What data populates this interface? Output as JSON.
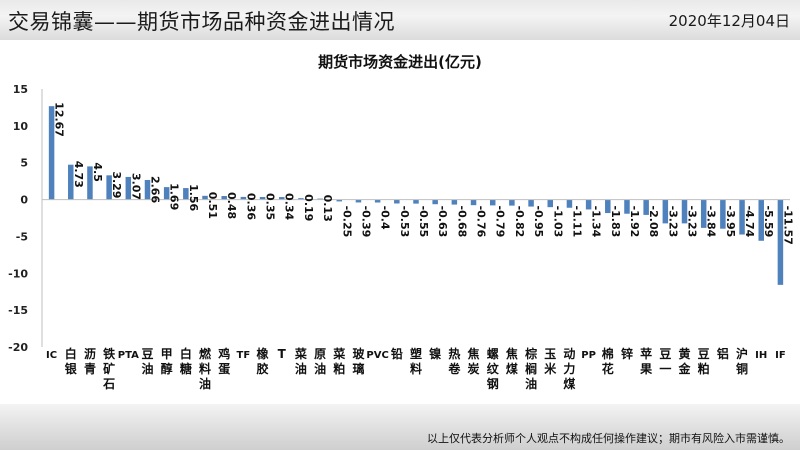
{
  "header": {
    "title": "交易锦囊——期货市场品种资金进出情况",
    "date": "2020年12月04日"
  },
  "footer": {
    "disclaimer": "以上仅代表分析师个人观点不构成任何操作建议；期市有风险入市需谨慎。"
  },
  "chart_data": {
    "type": "bar",
    "title": "期货市场资金进出(亿元)",
    "xlabel": "",
    "ylabel": "",
    "ylim": [
      -20,
      15
    ],
    "yticks": [
      15,
      10,
      5,
      0,
      -5,
      -10,
      -15,
      -20
    ],
    "grid": false,
    "bar_color": "#4f81bd",
    "categories": [
      "IC",
      "白银",
      "沥青",
      "铁矿石",
      "PTA",
      "豆油",
      "甲醇",
      "白糖",
      "燃料油",
      "鸡蛋",
      "TF",
      "橡胶",
      "T",
      "菜油",
      "原油",
      "菜粕",
      "玻璃",
      "PVC",
      "铅",
      "塑料",
      "镍",
      "热卷",
      "焦炭",
      "螺纹钢",
      "焦煤",
      "棕榈油",
      "玉米",
      "动力煤",
      "PP",
      "棉花",
      "锌",
      "苹果",
      "豆一",
      "黄金",
      "豆粕",
      "铝",
      "沪铜",
      "IH",
      "IF"
    ],
    "values": [
      12.67,
      4.73,
      4.5,
      3.29,
      3.07,
      2.66,
      1.69,
      1.56,
      0.51,
      0.48,
      0.36,
      0.35,
      0.34,
      0.19,
      0.13,
      -0.25,
      -0.39,
      -0.4,
      -0.53,
      -0.55,
      -0.63,
      -0.68,
      -0.76,
      -0.79,
      -0.82,
      -0.95,
      -1.03,
      -1.11,
      -1.34,
      -1.83,
      -1.92,
      -2.08,
      -3.23,
      -3.23,
      -3.84,
      -3.95,
      -4.74,
      -5.59,
      -11.57
    ],
    "value_labels": [
      "12.67",
      "4.73",
      "4.5",
      "3.29",
      "3.07",
      "2.66",
      "1.69",
      "1.56",
      "0.51",
      "0.48",
      "0.36",
      "0.35",
      "0.34",
      "0.19",
      "0.13",
      "-0.25",
      "-0.39",
      "-0.4",
      "-0.53",
      "-0.55",
      "-0.63",
      "-0.68",
      "-0.76",
      "-0.79",
      "-0.82",
      "-0.95",
      "-1.03",
      "-1.11",
      "-1.34",
      "-1.83",
      "-1.92",
      "-2.08",
      "-3.23",
      "-3.23",
      "-3.84",
      "-3.95",
      "-4.74",
      "-5.59",
      "-11.57"
    ]
  }
}
